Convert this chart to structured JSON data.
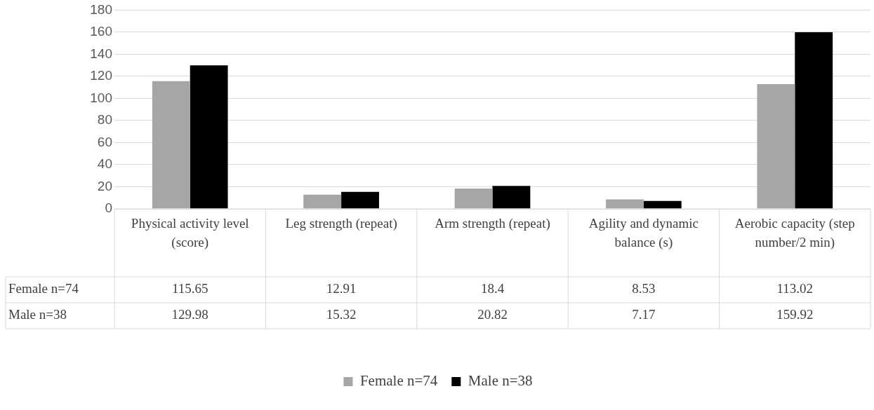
{
  "chart_data": {
    "type": "bar",
    "categories": [
      "Physical activity level (score)",
      "Leg strength (repeat)",
      "Arm strength (repeat)",
      "Agility and dynamic balance (s)",
      "Aerobic capacity (step number/2 min)"
    ],
    "series": [
      {
        "name": "Female n=74",
        "color": "#a6a6a6",
        "values": [
          115.65,
          12.91,
          18.4,
          8.53,
          113.02
        ]
      },
      {
        "name": "Male n=38",
        "color": "#000000",
        "values": [
          129.98,
          15.32,
          20.82,
          7.17,
          159.92
        ]
      }
    ],
    "ylim": [
      0,
      180
    ],
    "yticks": [
      0,
      20,
      40,
      60,
      80,
      100,
      120,
      140,
      160,
      180
    ],
    "grid": "y",
    "legend": "bottom",
    "data_labels": true
  }
}
